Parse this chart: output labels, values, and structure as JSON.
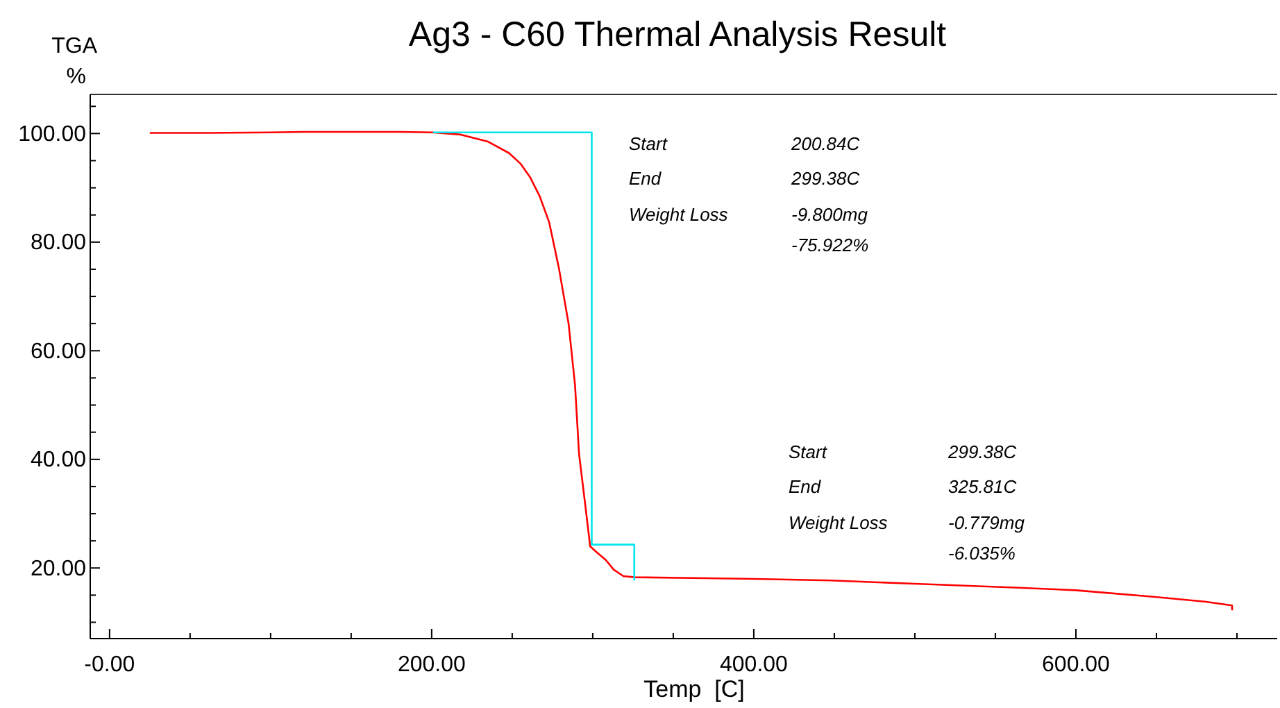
{
  "chart_data": {
    "type": "line",
    "title": "Ag3 - C60 Thermal Analysis Result",
    "xlabel": "Temp  [C]",
    "ylabel": "TGA %",
    "series": [
      {
        "color": "#ff0000",
        "x": [
          25,
          60,
          100,
          120,
          150,
          180,
          200,
          218,
          235,
          248,
          255,
          261,
          267,
          273,
          279,
          285,
          289,
          291.5,
          295,
          298.4,
          302,
          308,
          313,
          319,
          326,
          400,
          448,
          500,
          562,
          600,
          648,
          680,
          697,
          697
        ],
        "values": [
          100.1,
          100.1,
          100.2,
          100.3,
          100.3,
          100.3,
          100.2,
          99.8,
          98.5,
          96.4,
          94.5,
          92,
          88.5,
          83.6,
          75.2,
          65,
          53.7,
          41,
          32.5,
          24,
          23,
          21.5,
          19.7,
          18.5,
          18.3,
          18,
          17.7,
          17.1,
          16.4,
          15.9,
          14.7,
          13.8,
          13.1,
          12.2
        ]
      },
      {
        "color": "#00e5ee",
        "x": [
          200.84,
          299.38,
          299.38,
          325.81,
          325.81
        ],
        "values": [
          100.2,
          100.2,
          24.3,
          24.3,
          17.7
        ]
      }
    ],
    "annotations": [
      "Start",
      "200.84C",
      "End",
      "299.38C",
      "Weight Loss",
      "-9.800mg",
      "-75.922%",
      "Start",
      "299.38C",
      "End",
      "325.81C",
      "Weight Loss",
      "-0.779mg",
      "-6.035%"
    ],
    "xlim": [
      -12,
      725
    ],
    "ylim": [
      7,
      107.2
    ],
    "xticks": [
      {
        "value": 0,
        "label": "-0.00"
      },
      {
        "value": 50,
        "label": null
      },
      {
        "value": 100,
        "label": null
      },
      {
        "value": 150,
        "label": null
      },
      {
        "value": 200,
        "label": "200.00"
      },
      {
        "value": 250,
        "label": null
      },
      {
        "value": 300,
        "label": null
      },
      {
        "value": 350,
        "label": null
      },
      {
        "value": 400,
        "label": "400.00"
      },
      {
        "value": 450,
        "label": null
      },
      {
        "value": 500,
        "label": null
      },
      {
        "value": 550,
        "label": null
      },
      {
        "value": 600,
        "label": "600.00"
      },
      {
        "value": 650,
        "label": null
      },
      {
        "value": 700,
        "label": null
      }
    ],
    "yticks": [
      {
        "value": 10,
        "label": null
      },
      {
        "value": 15,
        "label": null
      },
      {
        "value": 20,
        "label": "20.00"
      },
      {
        "value": 25,
        "label": null
      },
      {
        "value": 30,
        "label": null
      },
      {
        "value": 35,
        "label": null
      },
      {
        "value": 40,
        "label": "40.00"
      },
      {
        "value": 45,
        "label": null
      },
      {
        "value": 50,
        "label": null
      },
      {
        "value": 55,
        "label": null
      },
      {
        "value": 60,
        "label": "60.00"
      },
      {
        "value": 65,
        "label": null
      },
      {
        "value": 70,
        "label": null
      },
      {
        "value": 75,
        "label": null
      },
      {
        "value": 80,
        "label": "80.00"
      },
      {
        "value": 85,
        "label": null
      },
      {
        "value": 90,
        "label": null
      },
      {
        "value": 95,
        "label": null
      },
      {
        "value": 100,
        "label": "100.00"
      },
      {
        "value": 105,
        "label": null
      }
    ],
    "grid": false,
    "marker": "none",
    "line_style": "solid"
  }
}
